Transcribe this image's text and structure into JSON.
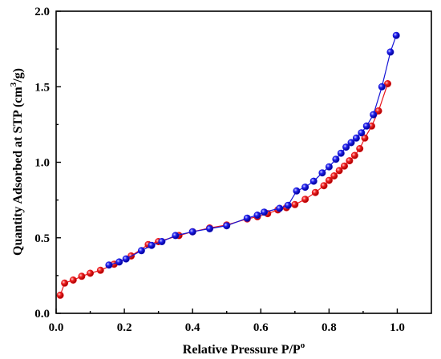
{
  "chart_data": {
    "type": "line",
    "title": "",
    "xlabel": "Relative Pressure P/P",
    "xlabel_superscript": "o",
    "ylabel": "Quantity Adsorbed at STP (cm",
    "ylabel_superscript": "3",
    "ylabel_suffix": "/g)",
    "xlim": [
      0.0,
      1.1
    ],
    "ylim": [
      0.0,
      2.0
    ],
    "xticks": [
      "0.0",
      "0.2",
      "0.4",
      "0.6",
      "0.8",
      "1.0"
    ],
    "yticks": [
      "0.0",
      "0.5",
      "1.0",
      "1.5",
      "2.0"
    ],
    "grid": false,
    "legend": "none",
    "series": [
      {
        "color": "#e8141b",
        "points": [
          [
            0.012,
            0.12
          ],
          [
            0.025,
            0.2
          ],
          [
            0.05,
            0.22
          ],
          [
            0.075,
            0.245
          ],
          [
            0.1,
            0.265
          ],
          [
            0.13,
            0.285
          ],
          [
            0.17,
            0.325
          ],
          [
            0.22,
            0.38
          ],
          [
            0.27,
            0.455
          ],
          [
            0.3,
            0.475
          ],
          [
            0.36,
            0.515
          ],
          [
            0.4,
            0.54
          ],
          [
            0.45,
            0.565
          ],
          [
            0.5,
            0.585
          ],
          [
            0.56,
            0.625
          ],
          [
            0.59,
            0.64
          ],
          [
            0.62,
            0.66
          ],
          [
            0.65,
            0.685
          ],
          [
            0.675,
            0.7
          ],
          [
            0.7,
            0.72
          ],
          [
            0.73,
            0.755
          ],
          [
            0.76,
            0.8
          ],
          [
            0.785,
            0.845
          ],
          [
            0.8,
            0.88
          ],
          [
            0.815,
            0.91
          ],
          [
            0.83,
            0.945
          ],
          [
            0.845,
            0.975
          ],
          [
            0.86,
            1.01
          ],
          [
            0.875,
            1.045
          ],
          [
            0.89,
            1.09
          ],
          [
            0.905,
            1.16
          ],
          [
            0.925,
            1.24
          ],
          [
            0.945,
            1.34
          ],
          [
            0.972,
            1.52
          ]
        ]
      },
      {
        "color": "#1515d6",
        "points": [
          [
            0.997,
            1.84
          ],
          [
            0.98,
            1.73
          ],
          [
            0.955,
            1.5
          ],
          [
            0.93,
            1.315
          ],
          [
            0.91,
            1.24
          ],
          [
            0.895,
            1.195
          ],
          [
            0.88,
            1.16
          ],
          [
            0.865,
            1.13
          ],
          [
            0.85,
            1.1
          ],
          [
            0.835,
            1.06
          ],
          [
            0.82,
            1.02
          ],
          [
            0.8,
            0.97
          ],
          [
            0.78,
            0.93
          ],
          [
            0.755,
            0.875
          ],
          [
            0.73,
            0.835
          ],
          [
            0.705,
            0.81
          ],
          [
            0.68,
            0.715
          ],
          [
            0.655,
            0.695
          ],
          [
            0.61,
            0.67
          ],
          [
            0.59,
            0.65
          ],
          [
            0.56,
            0.63
          ],
          [
            0.5,
            0.58
          ],
          [
            0.45,
            0.56
          ],
          [
            0.4,
            0.54
          ],
          [
            0.35,
            0.515
          ],
          [
            0.31,
            0.475
          ],
          [
            0.28,
            0.45
          ],
          [
            0.25,
            0.415
          ],
          [
            0.205,
            0.36
          ],
          [
            0.185,
            0.34
          ],
          [
            0.155,
            0.32
          ]
        ]
      }
    ]
  }
}
